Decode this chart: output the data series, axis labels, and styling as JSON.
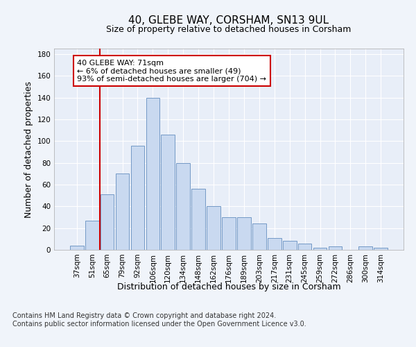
{
  "title": "40, GLEBE WAY, CORSHAM, SN13 9UL",
  "subtitle": "Size of property relative to detached houses in Corsham",
  "xlabel": "Distribution of detached houses by size in Corsham",
  "ylabel": "Number of detached properties",
  "categories": [
    "37sqm",
    "51sqm",
    "65sqm",
    "79sqm",
    "92sqm",
    "106sqm",
    "120sqm",
    "134sqm",
    "148sqm",
    "162sqm",
    "176sqm",
    "189sqm",
    "203sqm",
    "217sqm",
    "231sqm",
    "245sqm",
    "259sqm",
    "272sqm",
    "286sqm",
    "300sqm",
    "314sqm"
  ],
  "values": [
    4,
    27,
    51,
    70,
    96,
    140,
    106,
    80,
    56,
    40,
    30,
    30,
    24,
    11,
    8,
    6,
    2,
    3,
    0,
    3,
    2
  ],
  "bar_color": "#c9d9f0",
  "bar_edge_color": "#7399c6",
  "vline_x": 1.5,
  "vline_color": "#cc0000",
  "annotation_text": "40 GLEBE WAY: 71sqm\n← 6% of detached houses are smaller (49)\n93% of semi-detached houses are larger (704) →",
  "ylim": [
    0,
    185
  ],
  "yticks": [
    0,
    20,
    40,
    60,
    80,
    100,
    120,
    140,
    160,
    180
  ],
  "footer_text": "Contains HM Land Registry data © Crown copyright and database right 2024.\nContains public sector information licensed under the Open Government Licence v3.0.",
  "background_color": "#f0f4fa",
  "plot_background": "#e8eef8",
  "grid_color": "#ffffff",
  "title_fontsize": 11,
  "subtitle_fontsize": 9,
  "label_fontsize": 9,
  "tick_fontsize": 7.5,
  "annot_fontsize": 8,
  "footer_fontsize": 7
}
